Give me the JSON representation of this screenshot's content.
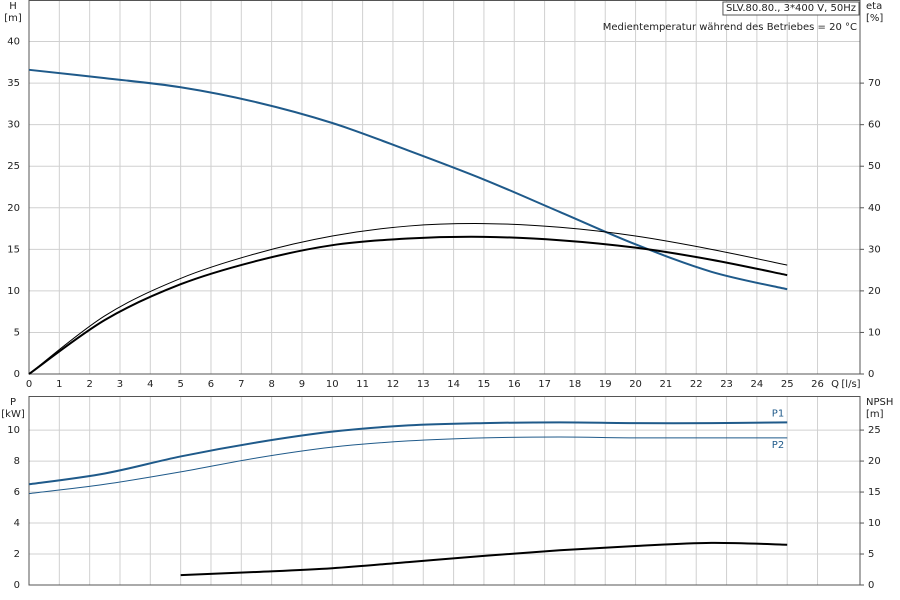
{
  "chart_data": [
    {
      "type": "line",
      "title": "SLV.80.80., 3*400 V, 50Hz",
      "subtitle": "Medientemperatur während des Betriebes = 20 °C",
      "y_label": "H",
      "y_unit": "[m]",
      "y2_label": "eta",
      "y2_unit": "[%]",
      "x_label": "Q",
      "x_unit": "[l/s]",
      "x": [
        0,
        2.5,
        5,
        7.5,
        10,
        12.5,
        15,
        17.5,
        20,
        22.5,
        25
      ],
      "xlim": [
        0,
        27.4
      ],
      "xticks": [
        0,
        1,
        2,
        3,
        4,
        5,
        6,
        7,
        8,
        9,
        10,
        11,
        12,
        13,
        14,
        15,
        16,
        17,
        18,
        19,
        20,
        21,
        22,
        23,
        24,
        25,
        26
      ],
      "xtick_labels": true,
      "ylim": [
        0,
        45
      ],
      "yticks": [
        0,
        5,
        10,
        15,
        20,
        25,
        30,
        35,
        40
      ],
      "y2lim": [
        0,
        90
      ],
      "y2ticks": [
        0,
        10,
        20,
        30,
        40,
        50,
        60,
        70
      ],
      "grid": true,
      "series": [
        {
          "color": "#1f5a8a",
          "line_width": 2,
          "values": [
            36.6,
            35.6,
            34.5,
            32.7,
            30.2,
            26.9,
            23.4,
            19.5,
            15.6,
            12.3,
            10.2
          ]
        },
        {
          "color": "#000000",
          "line_width": 1,
          "axis": "y2",
          "values": [
            0,
            14,
            23,
            29,
            33.2,
            35.6,
            36.2,
            35.3,
            33.2,
            30,
            26.2
          ]
        },
        {
          "color": "#000000",
          "line_width": 2,
          "axis": "y2",
          "values": [
            0,
            13,
            21.6,
            27.2,
            31,
            32.6,
            33,
            32.2,
            30.4,
            27.5,
            23.8
          ]
        }
      ]
    },
    {
      "type": "line",
      "y_label": "P",
      "y_unit": "[kW]",
      "y2_label": "NPSH",
      "y2_unit": "[m]",
      "x": [
        0,
        2.5,
        5,
        7.5,
        10,
        12.5,
        15,
        17.5,
        20,
        22.5,
        25
      ],
      "xlim": [
        0,
        27.4
      ],
      "xticks": [
        0,
        1,
        2,
        3,
        4,
        5,
        6,
        7,
        8,
        9,
        10,
        11,
        12,
        13,
        14,
        15,
        16,
        17,
        18,
        19,
        20,
        21,
        22,
        23,
        24,
        25,
        26
      ],
      "xtick_labels": false,
      "ylim": [
        0,
        12.2
      ],
      "yticks": [
        0,
        2,
        4,
        6,
        8,
        10
      ],
      "y2lim": [
        0,
        30.5
      ],
      "y2ticks": [
        0,
        5,
        10,
        15,
        20,
        25
      ],
      "grid": true,
      "series": [
        {
          "name": "P1",
          "color": "#1f5a8a",
          "line_width": 2,
          "values": [
            6.5,
            7.2,
            8.3,
            9.2,
            9.9,
            10.3,
            10.45,
            10.5,
            10.45,
            10.45,
            10.5
          ]
        },
        {
          "name": "P2",
          "color": "#1f5a8a",
          "line_width": 1,
          "values": [
            5.9,
            6.5,
            7.3,
            8.2,
            8.9,
            9.3,
            9.5,
            9.55,
            9.5,
            9.5,
            9.5
          ]
        },
        {
          "color": "#000000",
          "line_width": 2,
          "axis": "y2",
          "values": [
            null,
            null,
            1.6,
            2.1,
            2.7,
            3.7,
            4.7,
            5.6,
            6.3,
            6.8,
            6.5
          ]
        }
      ]
    }
  ]
}
